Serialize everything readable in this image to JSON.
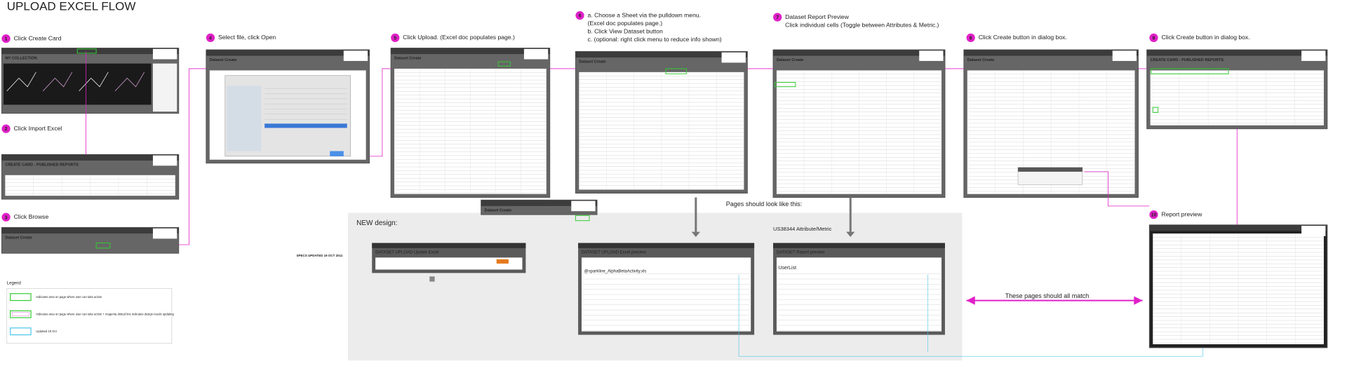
{
  "title": "UPLOAD EXCEL FLOW",
  "steps": [
    {
      "number": "1",
      "lines": [
        "Click Create Card"
      ],
      "screen": "MY COLLECTION"
    },
    {
      "number": "2",
      "lines": [
        "Click Import Excel"
      ],
      "screen": "CREATE CARD - PUBLISHED REPORTS"
    },
    {
      "number": "3",
      "lines": [
        "Click Browse"
      ],
      "screen": "Dataset Create"
    },
    {
      "number": "4",
      "lines": [
        "Select file, click Open"
      ],
      "screen": "Dataset Create"
    },
    {
      "number": "5",
      "lines": [
        "Click Upload. (Excel doc populates page.)"
      ],
      "screen": "Dataset Create"
    },
    {
      "number": "6",
      "lines": [
        "a. Choose a Sheet via the pulldown menu.",
        "(Excel doc populates page.)",
        "b. Click View Dataset button",
        "c. (optional: right click menu to reduce info shown)"
      ],
      "screen": "Dataset Create"
    },
    {
      "number": "7",
      "lines": [
        "Dataset Report Preview",
        "Click individual cells (Toggle between Attributes & Metric.)"
      ],
      "screen": "Dataset Create"
    },
    {
      "number": "8",
      "lines": [
        "Click Create button in dialog box."
      ],
      "screen": "Dataset Create"
    },
    {
      "number": "9",
      "lines": [
        "Click Create button in dialog box."
      ],
      "screen": "CREATE CARD - PUBLISHED REPORTS"
    },
    {
      "number": "10",
      "lines": [
        "Report preview"
      ],
      "screen": "REPORT PREVIEW"
    }
  ],
  "new_design": {
    "heading": "NEW design:",
    "subheading": "US38344 Attribute/Metric",
    "screens": [
      "DATASET UPLOAD Update Excel",
      "DATASET UPLOAD Excel preview",
      "DATASET Report preview"
    ],
    "file_name": "@sparkline_AlphaBetaActivity.xls",
    "list_name": "UserList",
    "middle_screen": "Dataset Create"
  },
  "notes": {
    "pages_should_look": "Pages should look like this:",
    "pages_match": "These pages should all match",
    "specs_updated": "SPECS UPDATED 19 OCT 2011"
  },
  "legend": {
    "title": "Legend",
    "items": [
      "Indicates area on page where user can take action",
      "Indicates area on page where user can take action + magenta dotted line indicates design needs updating",
      "Updated 19 Oct"
    ]
  }
}
